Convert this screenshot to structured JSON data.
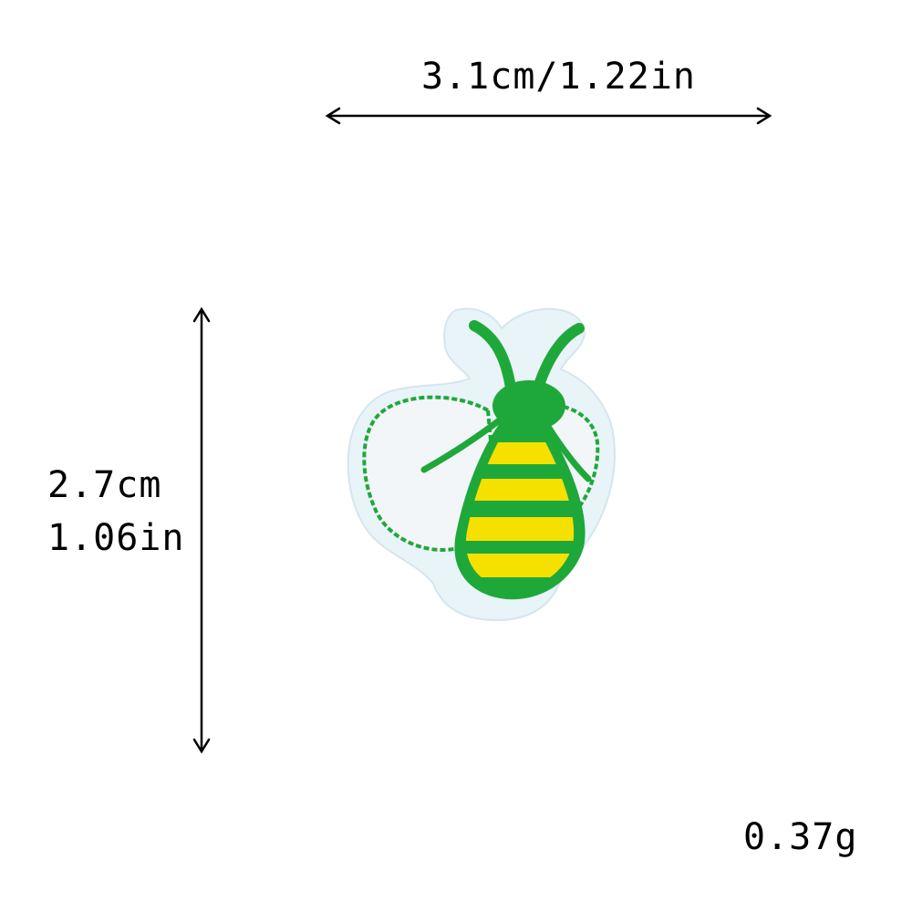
{
  "dimensions": {
    "width_label": "3.1cm/1.22in",
    "height_label_cm": "2.7cm",
    "height_label_in": "1.06in",
    "weight_label": "0.37g"
  },
  "product": {
    "illustration": "bee-patch-icon",
    "colors": {
      "backing": "#e8f4f8",
      "thread_green": "#1fa83a",
      "thread_yellow": "#f5e000",
      "wing_fill": "#f2f6f8"
    }
  },
  "arrows": {
    "color": "#000000"
  }
}
